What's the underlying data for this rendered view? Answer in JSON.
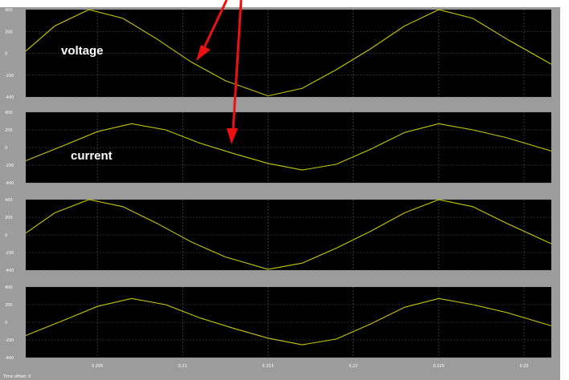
{
  "scope": {
    "x_axis": {
      "range": [
        0.2008,
        0.2316
      ],
      "tick_labels": [
        "0.205",
        "0.21",
        "0.215",
        "0.22",
        "0.225",
        "0.23"
      ],
      "tick_values": [
        0.205,
        0.21,
        0.215,
        0.22,
        0.225,
        0.23
      ]
    },
    "time_offset": "Time offset:  0",
    "colors": {
      "plot_background": "#000000",
      "frame": "#9c9c9c",
      "trace": "#c8c800",
      "grid": "#5a5a5a",
      "annotation_arrow": "#ee1111",
      "overlay_text": "#ffffff"
    }
  },
  "annotations": {
    "voltage_label": "voltage",
    "current_label": "current"
  },
  "chart_data": [
    {
      "type": "line",
      "ylim": [
        -400,
        400
      ],
      "y_ticks": [
        400,
        200,
        0,
        -200,
        -400
      ],
      "y_tick_labels": [
        "400",
        "200",
        "0",
        "-200",
        "-400"
      ],
      "x": [
        0.2008,
        0.2025,
        0.2045,
        0.2065,
        0.2085,
        0.2105,
        0.2125,
        0.215,
        0.217,
        0.219,
        0.221,
        0.223,
        0.225,
        0.227,
        0.229,
        0.2316
      ],
      "series": [
        {
          "values": [
            20,
            250,
            400,
            320,
            130,
            -80,
            -250,
            -390,
            -320,
            -150,
            40,
            250,
            400,
            320,
            130,
            -100
          ]
        }
      ]
    },
    {
      "type": "line",
      "ylim": [
        -400,
        400
      ],
      "y_ticks": [
        400,
        200,
        0,
        -200,
        -400
      ],
      "y_tick_labels": [
        "400",
        "200",
        "0",
        "-200",
        "-400"
      ],
      "x": [
        0.2008,
        0.203,
        0.205,
        0.207,
        0.209,
        0.211,
        0.213,
        0.215,
        0.217,
        0.219,
        0.221,
        0.223,
        0.225,
        0.227,
        0.229,
        0.2316
      ],
      "series": [
        {
          "values": [
            -150,
            20,
            180,
            270,
            200,
            50,
            -70,
            -180,
            -255,
            -190,
            -20,
            170,
            270,
            200,
            110,
            -40
          ]
        }
      ]
    },
    {
      "type": "line",
      "ylim": [
        -400,
        400
      ],
      "y_ticks": [
        400,
        200,
        0,
        -200,
        -400
      ],
      "y_tick_labels": [
        "400",
        "200",
        "0",
        "-200",
        "-400"
      ],
      "x": [
        0.2008,
        0.2025,
        0.2045,
        0.2065,
        0.2085,
        0.2105,
        0.2125,
        0.215,
        0.217,
        0.219,
        0.221,
        0.223,
        0.225,
        0.227,
        0.229,
        0.2316
      ],
      "series": [
        {
          "values": [
            20,
            250,
            400,
            320,
            130,
            -80,
            -250,
            -390,
            -320,
            -150,
            40,
            250,
            400,
            320,
            130,
            -100
          ]
        }
      ]
    },
    {
      "type": "line",
      "ylim": [
        -400,
        400
      ],
      "y_ticks": [
        400,
        200,
        0,
        -200,
        -400
      ],
      "y_tick_labels": [
        "400",
        "200",
        "0",
        "-200",
        "-400"
      ],
      "x": [
        0.2008,
        0.203,
        0.205,
        0.207,
        0.209,
        0.211,
        0.213,
        0.215,
        0.217,
        0.219,
        0.221,
        0.223,
        0.225,
        0.227,
        0.229,
        0.2316
      ],
      "series": [
        {
          "values": [
            -150,
            20,
            180,
            270,
            200,
            50,
            -70,
            -180,
            -255,
            -190,
            -20,
            170,
            270,
            200,
            110,
            -40
          ]
        }
      ]
    }
  ]
}
